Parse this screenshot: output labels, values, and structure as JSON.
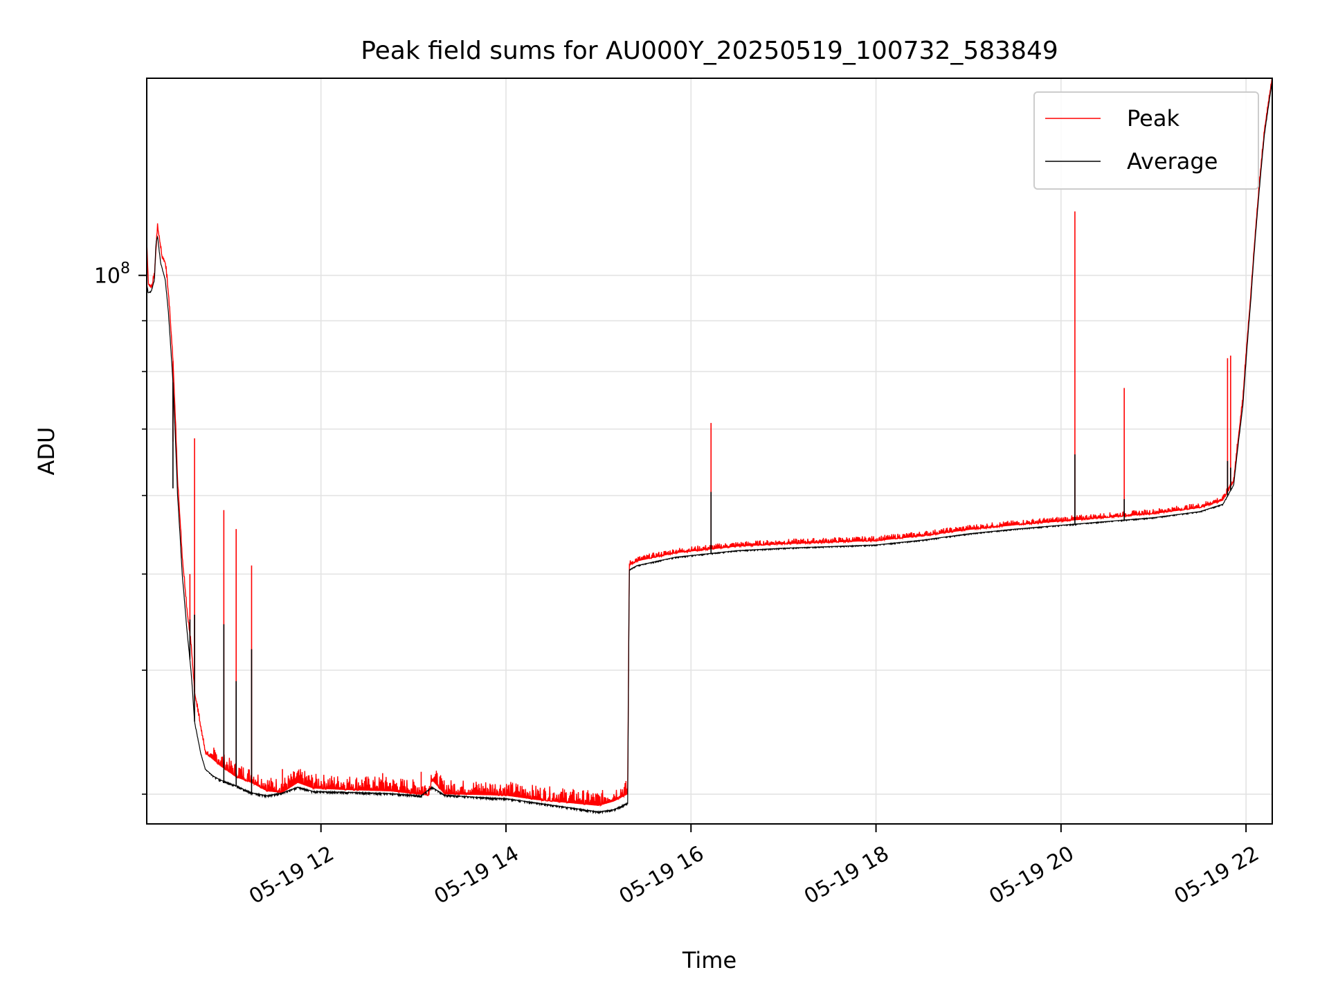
{
  "chart_data": {
    "type": "line",
    "title": "Peak field sums for AU000Y_20250519_100732_583849",
    "xlabel": "Time",
    "ylabel": "ADU",
    "x_axis": "datetime",
    "xlim": [
      "2025-05-19 10:07",
      "2025-05-19 22:17"
    ],
    "x_ticks": [
      {
        "x": "2025-05-19 12:00",
        "label": "05-19 12"
      },
      {
        "x": "2025-05-19 14:00",
        "label": "05-19 14"
      },
      {
        "x": "2025-05-19 16:00",
        "label": "05-19 16"
      },
      {
        "x": "2025-05-19 18:00",
        "label": "05-19 18"
      },
      {
        "x": "2025-05-19 20:00",
        "label": "05-19 20"
      },
      {
        "x": "2025-05-19 22:00",
        "label": "05-19 22"
      }
    ],
    "y_scale": "log",
    "ylim": [
      28000000,
      158000000
    ],
    "y_major_ticks": [
      {
        "value": 100000000,
        "base": "10",
        "exp": "8"
      }
    ],
    "y_minor_ticks": [
      30000000,
      40000000,
      50000000,
      60000000,
      70000000,
      80000000,
      90000000
    ],
    "grid": true,
    "legend": {
      "position": "top-right"
    },
    "colors": {
      "Peak": "#ff0000",
      "Average": "#000000"
    },
    "series": [
      {
        "name": "Peak",
        "points": [
          [
            "2025-05-19 10:07",
            108000000
          ],
          [
            "2025-05-19 10:08",
            98000000
          ],
          [
            "2025-05-19 10:10",
            97000000
          ],
          [
            "2025-05-19 10:12",
            100000000
          ],
          [
            "2025-05-19 10:14",
            112000000
          ],
          [
            "2025-05-19 10:17",
            104000000
          ],
          [
            "2025-05-19 10:19",
            103000000
          ],
          [
            "2025-05-19 10:21",
            96000000
          ],
          [
            "2025-05-19 10:24",
            82000000
          ],
          [
            "2025-05-19 10:27",
            62000000
          ],
          [
            "2025-05-19 10:30",
            52000000
          ],
          [
            "2025-05-19 10:33",
            46000000
          ],
          [
            "2025-05-19 10:36",
            42000000
          ],
          [
            "2025-05-19 10:38",
            38000000
          ],
          [
            "2025-05-19 10:42",
            35000000
          ],
          [
            "2025-05-19 10:45",
            33000000
          ],
          [
            "2025-05-19 10:50",
            32500000
          ],
          [
            "2025-05-19 10:55",
            32000000
          ],
          [
            "2025-05-19 11:05",
            31200000
          ],
          [
            "2025-05-19 11:15",
            30800000
          ],
          [
            "2025-05-19 11:25",
            30200000
          ],
          [
            "2025-05-19 11:35",
            30100000
          ],
          [
            "2025-05-19 11:45",
            30800000
          ],
          [
            "2025-05-19 11:55",
            30400000
          ],
          [
            "2025-05-19 12:15",
            30300000
          ],
          [
            "2025-05-19 12:45",
            30200000
          ],
          [
            "2025-05-19 13:10",
            29900000
          ],
          [
            "2025-05-19 13:12",
            31000000
          ],
          [
            "2025-05-19 13:20",
            30000000
          ],
          [
            "2025-05-19 13:40",
            29950000
          ],
          [
            "2025-05-19 14:00",
            29900000
          ],
          [
            "2025-05-19 14:20",
            29600000
          ],
          [
            "2025-05-19 14:40",
            29400000
          ],
          [
            "2025-05-19 15:00",
            29200000
          ],
          [
            "2025-05-19 15:10",
            29500000
          ],
          [
            "2025-05-19 15:19",
            30000000
          ],
          [
            "2025-05-19 15:20",
            51000000
          ],
          [
            "2025-05-19 15:25",
            51500000
          ],
          [
            "2025-05-19 15:50",
            52500000
          ],
          [
            "2025-05-19 16:30",
            53300000
          ],
          [
            "2025-05-19 17:00",
            53600000
          ],
          [
            "2025-05-19 17:30",
            53800000
          ],
          [
            "2025-05-19 18:00",
            54000000
          ],
          [
            "2025-05-19 18:30",
            54600000
          ],
          [
            "2025-05-19 19:00",
            55400000
          ],
          [
            "2025-05-19 19:30",
            56000000
          ],
          [
            "2025-05-19 20:00",
            56500000
          ],
          [
            "2025-05-19 20:30",
            57000000
          ],
          [
            "2025-05-19 21:00",
            57500000
          ],
          [
            "2025-05-19 21:30",
            58300000
          ],
          [
            "2025-05-19 21:45",
            59300000
          ],
          [
            "2025-05-19 21:52",
            62000000
          ],
          [
            "2025-05-19 21:58",
            75000000
          ],
          [
            "2025-05-19 22:03",
            95000000
          ],
          [
            "2025-05-19 22:08",
            120000000
          ],
          [
            "2025-05-19 22:12",
            140000000
          ],
          [
            "2025-05-19 22:17",
            158000000
          ]
        ],
        "spikes": [
          [
            "2025-05-19 10:24",
            68000000
          ],
          [
            "2025-05-19 10:35",
            50000000
          ],
          [
            "2025-05-19 10:38",
            68500000
          ],
          [
            "2025-05-19 10:57",
            58000000
          ],
          [
            "2025-05-19 11:05",
            55500000
          ],
          [
            "2025-05-19 11:15",
            51000000
          ],
          [
            "2025-05-19 11:35",
            31800000
          ],
          [
            "2025-05-19 12:40",
            31500000
          ],
          [
            "2025-05-19 13:05",
            31600000
          ],
          [
            "2025-05-19 16:13",
            71000000
          ],
          [
            "2025-05-19 20:09",
            116000000
          ],
          [
            "2025-05-19 20:41",
            77000000
          ],
          [
            "2025-05-19 21:48",
            82500000
          ],
          [
            "2025-05-19 21:50",
            83000000
          ]
        ]
      },
      {
        "name": "Average",
        "points": [
          [
            "2025-05-19 10:07",
            98000000
          ],
          [
            "2025-05-19 10:08",
            96000000
          ],
          [
            "2025-05-19 10:10",
            96500000
          ],
          [
            "2025-05-19 10:12",
            99000000
          ],
          [
            "2025-05-19 10:13",
            108000000
          ],
          [
            "2025-05-19 10:14",
            109500000
          ],
          [
            "2025-05-19 10:16",
            103000000
          ],
          [
            "2025-05-19 10:19",
            99000000
          ],
          [
            "2025-05-19 10:21",
            92000000
          ],
          [
            "2025-05-19 10:24",
            78000000
          ],
          [
            "2025-05-19 10:27",
            60000000
          ],
          [
            "2025-05-19 10:30",
            50000000
          ],
          [
            "2025-05-19 10:33",
            44000000
          ],
          [
            "2025-05-19 10:36",
            39500000
          ],
          [
            "2025-05-19 10:38",
            35500000
          ],
          [
            "2025-05-19 10:42",
            33000000
          ],
          [
            "2025-05-19 10:45",
            31800000
          ],
          [
            "2025-05-19 10:50",
            31300000
          ],
          [
            "2025-05-19 10:55",
            31000000
          ],
          [
            "2025-05-19 11:05",
            30600000
          ],
          [
            "2025-05-19 11:15",
            30100000
          ],
          [
            "2025-05-19 11:25",
            29900000
          ],
          [
            "2025-05-19 11:35",
            30100000
          ],
          [
            "2025-05-19 11:45",
            30500000
          ],
          [
            "2025-05-19 11:55",
            30200000
          ],
          [
            "2025-05-19 12:15",
            30150000
          ],
          [
            "2025-05-19 12:45",
            30050000
          ],
          [
            "2025-05-19 13:05",
            29900000
          ],
          [
            "2025-05-19 13:12",
            30500000
          ],
          [
            "2025-05-19 13:20",
            29950000
          ],
          [
            "2025-05-19 13:40",
            29800000
          ],
          [
            "2025-05-19 14:00",
            29700000
          ],
          [
            "2025-05-19 14:20",
            29400000
          ],
          [
            "2025-05-19 14:40",
            29100000
          ],
          [
            "2025-05-19 15:00",
            28800000
          ],
          [
            "2025-05-19 15:10",
            28950000
          ],
          [
            "2025-05-19 15:19",
            29400000
          ],
          [
            "2025-05-19 15:20",
            50500000
          ],
          [
            "2025-05-19 15:25",
            51000000
          ],
          [
            "2025-05-19 15:50",
            52000000
          ],
          [
            "2025-05-19 16:30",
            52800000
          ],
          [
            "2025-05-19 17:00",
            53100000
          ],
          [
            "2025-05-19 17:30",
            53300000
          ],
          [
            "2025-05-19 18:00",
            53500000
          ],
          [
            "2025-05-19 18:30",
            54100000
          ],
          [
            "2025-05-19 19:00",
            54900000
          ],
          [
            "2025-05-19 19:30",
            55500000
          ],
          [
            "2025-05-19 20:00",
            56000000
          ],
          [
            "2025-05-19 20:30",
            56500000
          ],
          [
            "2025-05-19 21:00",
            57000000
          ],
          [
            "2025-05-19 21:30",
            57800000
          ],
          [
            "2025-05-19 21:45",
            58800000
          ],
          [
            "2025-05-19 21:52",
            61500000
          ],
          [
            "2025-05-19 21:58",
            74000000
          ],
          [
            "2025-05-19 22:03",
            94000000
          ],
          [
            "2025-05-19 22:08",
            119000000
          ],
          [
            "2025-05-19 22:12",
            139000000
          ],
          [
            "2025-05-19 22:17",
            157000000
          ]
        ],
        "spikes": [
          [
            "2025-05-19 10:24",
            61000000
          ],
          [
            "2025-05-19 10:35",
            45000000
          ],
          [
            "2025-05-19 10:38",
            45500000
          ],
          [
            "2025-05-19 10:57",
            44500000
          ],
          [
            "2025-05-19 11:05",
            39000000
          ],
          [
            "2025-05-19 11:15",
            42000000
          ],
          [
            "2025-05-19 16:13",
            60500000
          ],
          [
            "2025-05-19 20:09",
            66000000
          ],
          [
            "2025-05-19 20:41",
            59500000
          ],
          [
            "2025-05-19 21:48",
            65000000
          ],
          [
            "2025-05-19 21:50",
            64000000
          ]
        ]
      }
    ]
  }
}
